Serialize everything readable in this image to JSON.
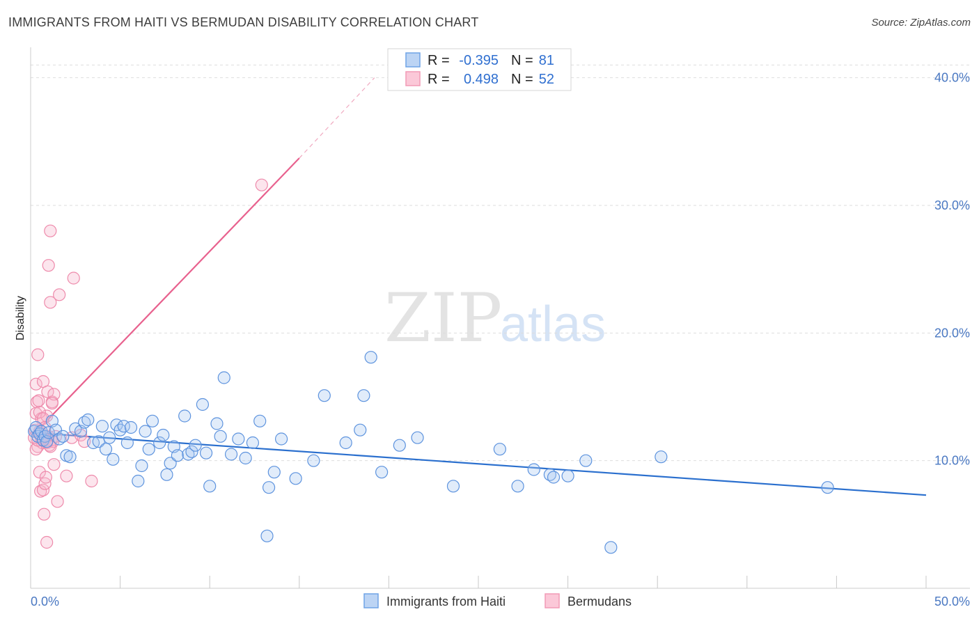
{
  "title": "IMMIGRANTS FROM HAITI VS BERMUDAN DISABILITY CORRELATION CHART",
  "source": "Source: ZipAtlas.com",
  "watermark": {
    "zip": "ZIP",
    "atlas": "atlas"
  },
  "colors": {
    "blue": "#6fa3e6",
    "blue_line": "#2a6fce",
    "pink": "#f29ab5",
    "pink_line": "#e8618e"
  },
  "legend": {
    "rows": [
      {
        "r_label": "R =",
        "r_value": "-0.395",
        "n_label": "N =",
        "n_value": "81"
      },
      {
        "r_label": "R =",
        "r_value": "0.498",
        "n_label": "N =",
        "n_value": "52"
      }
    ]
  },
  "chart_data": {
    "type": "scatter",
    "title": "IMMIGRANTS FROM HAITI VS BERMUDAN DISABILITY CORRELATION CHART",
    "xlabel": "",
    "ylabel": "Disability",
    "xlim": [
      0,
      50
    ],
    "ylim": [
      0,
      42
    ],
    "x_tick_labels": [
      "0.0%",
      "50.0%"
    ],
    "y_ticks": [
      10,
      20,
      30,
      40
    ],
    "y_tick_labels": [
      "10.0%",
      "20.0%",
      "30.0%",
      "40.0%"
    ],
    "grid": true,
    "legend_position": "top-center",
    "series": [
      {
        "name": "Immigrants from Haiti",
        "color": "#6fa3e6",
        "r": -0.395,
        "n": 81,
        "trend": {
          "x": [
            0,
            50
          ],
          "y": [
            12.2,
            7.3
          ]
        },
        "x": [
          0.2,
          0.3,
          0.4,
          0.5,
          0.6,
          0.7,
          0.8,
          0.9,
          1.0,
          1.2,
          1.4,
          1.6,
          1.8,
          2.0,
          2.2,
          2.5,
          2.8,
          3.0,
          3.2,
          3.5,
          3.8,
          4.0,
          4.2,
          4.4,
          4.6,
          4.8,
          5.0,
          5.2,
          5.4,
          5.6,
          6.0,
          6.2,
          6.4,
          6.6,
          6.8,
          7.2,
          7.4,
          7.6,
          7.8,
          8.0,
          8.2,
          8.6,
          8.8,
          9.0,
          9.2,
          9.6,
          9.8,
          10.0,
          10.4,
          10.6,
          10.8,
          11.2,
          11.6,
          12.0,
          12.4,
          12.8,
          13.2,
          13.6,
          14.0,
          14.8,
          15.8,
          16.4,
          17.6,
          18.4,
          18.6,
          19.0,
          19.6,
          20.6,
          21.6,
          23.6,
          26.2,
          27.2,
          28.1,
          29.0,
          29.2,
          30.0,
          31.0,
          32.4,
          35.2,
          44.5,
          13.3
        ],
        "y": [
          12.3,
          12.6,
          11.9,
          12.1,
          12.3,
          11.6,
          11.9,
          11.5,
          12.2,
          13.1,
          12.4,
          11.7,
          11.9,
          10.4,
          10.3,
          12.5,
          12.3,
          13.0,
          13.2,
          11.4,
          11.5,
          12.7,
          10.9,
          11.8,
          10.1,
          12.8,
          12.4,
          12.7,
          11.4,
          12.6,
          8.4,
          9.6,
          12.3,
          10.9,
          13.1,
          11.4,
          12.0,
          8.9,
          9.8,
          11.1,
          10.4,
          13.5,
          10.5,
          10.7,
          11.2,
          14.4,
          10.6,
          8.0,
          12.9,
          11.9,
          16.5,
          10.5,
          11.7,
          10.2,
          11.4,
          13.1,
          4.1,
          9.1,
          11.7,
          8.6,
          10.0,
          15.1,
          11.4,
          12.4,
          15.1,
          18.1,
          9.1,
          11.2,
          11.8,
          8.0,
          10.9,
          8.0,
          9.3,
          8.9,
          8.7,
          8.8,
          10.0,
          3.2,
          10.3,
          7.9,
          7.9
        ],
        "note": ""
      },
      {
        "name": "Bermudans",
        "color": "#f29ab5",
        "r": 0.498,
        "n": 52,
        "trend": {
          "x": [
            0.2,
            15.0
          ],
          "y": [
            12.1,
            33.7
          ]
        },
        "trend_dashed": {
          "x": [
            15.0,
            19.2
          ],
          "y": [
            33.7,
            40.0
          ]
        },
        "x": [
          0.2,
          0.25,
          0.3,
          0.3,
          0.35,
          0.4,
          0.4,
          0.45,
          0.5,
          0.5,
          0.55,
          0.6,
          0.6,
          0.65,
          0.7,
          0.7,
          0.75,
          0.8,
          0.8,
          0.85,
          0.9,
          0.9,
          0.95,
          1.0,
          1.0,
          1.05,
          1.1,
          1.1,
          1.15,
          1.2,
          1.25,
          1.3,
          1.4,
          1.5,
          1.6,
          2.0,
          2.3,
          2.4,
          2.8,
          3.0,
          3.4,
          12.9,
          0.3,
          0.4,
          0.5,
          0.6,
          0.7,
          0.8,
          0.9,
          1.1,
          1.2,
          1.3
        ],
        "y": [
          11.8,
          12.4,
          13.7,
          16.0,
          14.6,
          11.1,
          18.3,
          14.7,
          12.3,
          9.1,
          7.6,
          12.1,
          13.3,
          11.4,
          16.2,
          7.7,
          5.8,
          11.6,
          8.2,
          8.7,
          3.6,
          13.5,
          15.4,
          11.9,
          25.3,
          11.2,
          22.4,
          28.0,
          11.6,
          14.6,
          11.5,
          15.2,
          11.9,
          6.8,
          23.0,
          8.8,
          11.8,
          24.3,
          12.0,
          11.5,
          8.4,
          31.6,
          10.9,
          11.6,
          13.8,
          11.8,
          13.3,
          12.6,
          11.4,
          11.1,
          14.5,
          9.7
        ],
        "note": ""
      }
    ]
  },
  "bottom_legend": [
    {
      "label": "Immigrants from Haiti"
    },
    {
      "label": "Bermudans"
    }
  ]
}
